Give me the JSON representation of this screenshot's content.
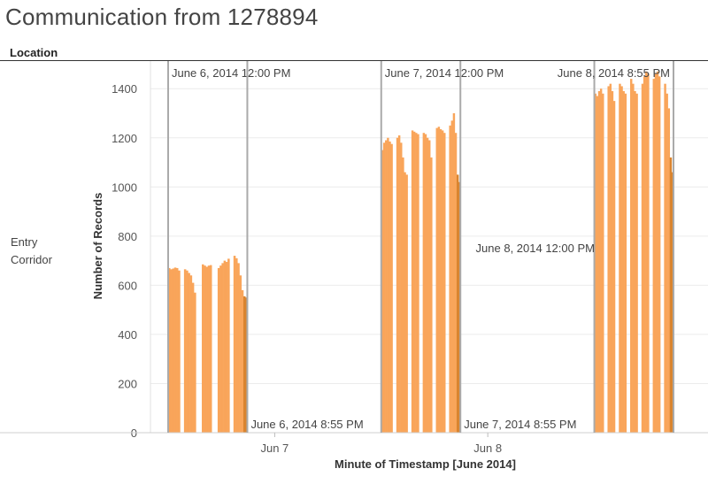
{
  "title": "Communication from 1278894",
  "header": {
    "location_label": "Location"
  },
  "row": {
    "label": "Entry Corridor"
  },
  "chart_data": {
    "type": "bar",
    "title": "Communication from 1278894",
    "xlabel": "Minute of Timestamp [June 2014]",
    "ylabel": "Number of Records",
    "ylim": [
      0,
      1480
    ],
    "yticks": [
      0,
      200,
      400,
      600,
      800,
      1000,
      1200,
      1400
    ],
    "xticks": [
      "Jun 7",
      "Jun 8"
    ],
    "grid": "horizontal",
    "bar_color": "#F9A55A",
    "bar_color_dark": "#D9842F",
    "reference_line_color": "#AAAAAA",
    "row": "Entry Corridor",
    "reference_lines": [
      {
        "label": "June 6, 2014 12:00 PM",
        "time": "2014-06-06 12:00"
      },
      {
        "label": "June 6, 2014 8:55 PM",
        "time": "2014-06-06 20:55"
      },
      {
        "label": "June 7, 2014 12:00 PM",
        "time": "2014-06-07 12:00"
      },
      {
        "label": "June 7, 2014 8:55 PM",
        "time": "2014-06-07 20:55"
      },
      {
        "label": "June 8, 2014 12:00 PM",
        "time": "2014-06-08 12:00"
      },
      {
        "label": "June 8, 2014 8:55 PM",
        "time": "2014-06-08 20:55"
      }
    ],
    "series": [
      {
        "day": "June 6, 2014",
        "start": "2014-06-06 12:00",
        "end": "2014-06-06 20:55",
        "values": [
          670,
          665,
          668,
          672,
          670,
          660,
          0,
          0,
          665,
          660,
          650,
          640,
          610,
          570,
          0,
          0,
          0,
          685,
          680,
          675,
          680,
          682,
          0,
          0,
          0,
          670,
          680,
          690,
          700,
          695,
          708,
          0,
          0,
          720,
          710,
          690,
          640,
          580,
          555,
          550
        ]
      },
      {
        "day": "June 7, 2014",
        "start": "2014-06-07 12:00",
        "end": "2014-06-07 20:55",
        "values": [
          1150,
          1180,
          1190,
          1200,
          1185,
          1175,
          0,
          0,
          1200,
          1210,
          1180,
          1120,
          1060,
          1050,
          0,
          0,
          1230,
          1225,
          1220,
          1215,
          0,
          0,
          1220,
          1215,
          1200,
          1190,
          1120,
          0,
          0,
          1240,
          1245,
          1235,
          1230,
          1220,
          0,
          0,
          1250,
          1270,
          1300,
          1220,
          1050,
          1020
        ]
      },
      {
        "day": "June 8, 2014",
        "start": "2014-06-08 12:00",
        "end": "2014-06-08 20:55",
        "values": [
          1380,
          1370,
          1390,
          1400,
          1380,
          0,
          0,
          1410,
          1420,
          1390,
          1350,
          0,
          0,
          1420,
          1410,
          1390,
          1380,
          0,
          0,
          1440,
          1420,
          1390,
          1380,
          0,
          0,
          1420,
          1450,
          1470,
          1460,
          0,
          0,
          1440,
          1460,
          1470,
          1450,
          0,
          0,
          1420,
          1380,
          1320,
          1120,
          1060
        ]
      }
    ]
  }
}
